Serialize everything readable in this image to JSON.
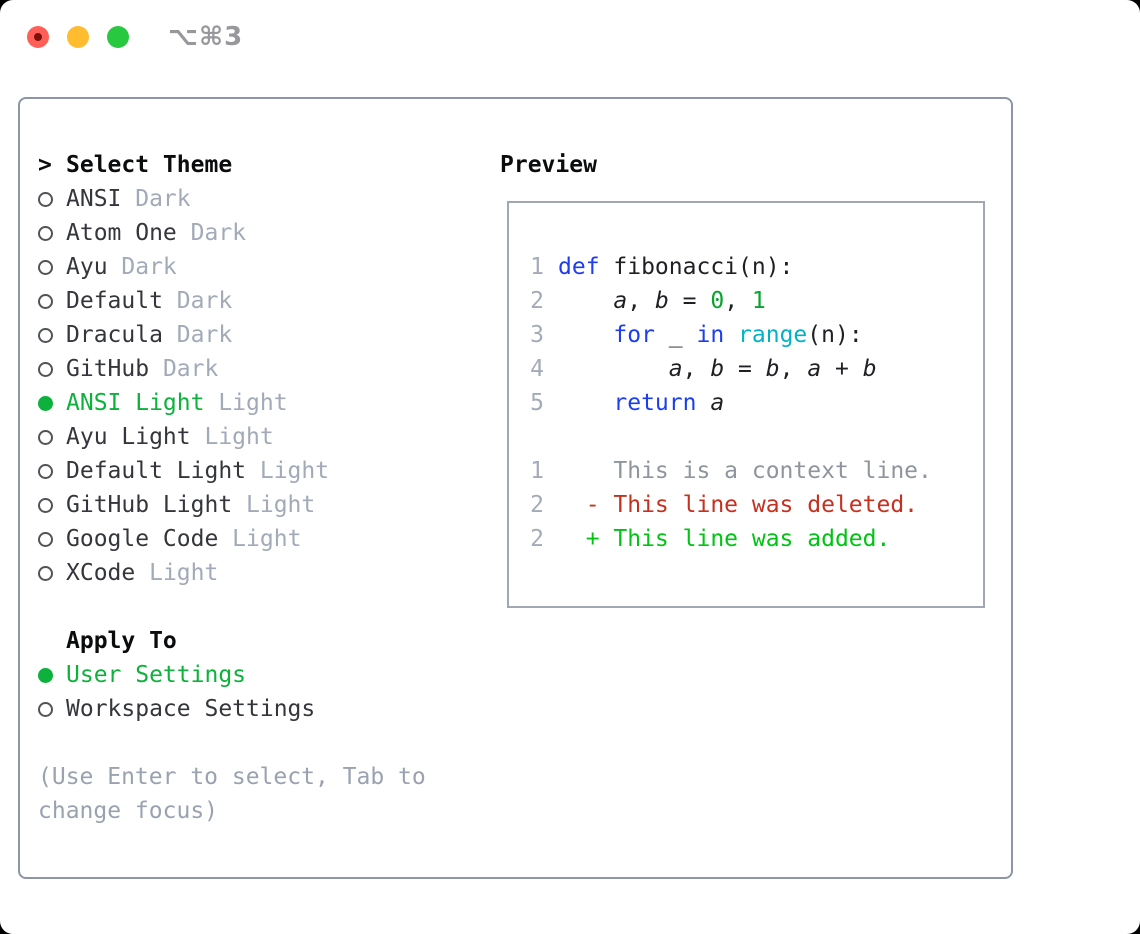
{
  "window": {
    "title": "⌥⌘3",
    "traffic_lights": [
      "close",
      "minimize",
      "zoom"
    ]
  },
  "theme_panel": {
    "header": {
      "prompt": ">",
      "label": "Select Theme"
    },
    "themes": [
      {
        "name": "ANSI",
        "tag": "Dark",
        "selected": false
      },
      {
        "name": "Atom One",
        "tag": "Dark",
        "selected": false
      },
      {
        "name": "Ayu",
        "tag": "Dark",
        "selected": false
      },
      {
        "name": "Default",
        "tag": "Dark",
        "selected": false
      },
      {
        "name": "Dracula",
        "tag": "Dark",
        "selected": false
      },
      {
        "name": "GitHub",
        "tag": "Dark",
        "selected": false
      },
      {
        "name": "ANSI Light",
        "tag": "Light",
        "selected": true
      },
      {
        "name": "Ayu Light",
        "tag": "Light",
        "selected": false
      },
      {
        "name": "Default Light",
        "tag": "Light",
        "selected": false
      },
      {
        "name": "GitHub Light",
        "tag": "Light",
        "selected": false
      },
      {
        "name": "Google Code",
        "tag": "Light",
        "selected": false
      },
      {
        "name": "XCode",
        "tag": "Light",
        "selected": false
      }
    ],
    "apply_to": {
      "label": "Apply To",
      "options": [
        {
          "name": "User Settings",
          "selected": true
        },
        {
          "name": "Workspace Settings",
          "selected": false
        }
      ]
    },
    "hint": "(Use Enter to select, Tab to change focus)"
  },
  "preview": {
    "label": "Preview",
    "code_lines": [
      {
        "num": "1",
        "tokens": [
          {
            "c": "kw",
            "t": "def"
          },
          {
            "c": "plain",
            "t": " fibonacci(n):"
          }
        ]
      },
      {
        "num": "2",
        "tokens": [
          {
            "c": "plain",
            "t": "    "
          },
          {
            "c": "var",
            "t": "a"
          },
          {
            "c": "plain",
            "t": ", "
          },
          {
            "c": "var",
            "t": "b"
          },
          {
            "c": "plain",
            "t": " = "
          },
          {
            "c": "num",
            "t": "0"
          },
          {
            "c": "plain",
            "t": ", "
          },
          {
            "c": "num",
            "t": "1"
          }
        ]
      },
      {
        "num": "3",
        "tokens": [
          {
            "c": "plain",
            "t": "    "
          },
          {
            "c": "kw",
            "t": "for"
          },
          {
            "c": "plain",
            "t": " _ "
          },
          {
            "c": "kw",
            "t": "in"
          },
          {
            "c": "plain",
            "t": " "
          },
          {
            "c": "fn",
            "t": "range"
          },
          {
            "c": "plain",
            "t": "(n):"
          }
        ]
      },
      {
        "num": "4",
        "tokens": [
          {
            "c": "plain",
            "t": "        "
          },
          {
            "c": "var",
            "t": "a"
          },
          {
            "c": "plain",
            "t": ", "
          },
          {
            "c": "var",
            "t": "b"
          },
          {
            "c": "plain",
            "t": " = "
          },
          {
            "c": "var",
            "t": "b"
          },
          {
            "c": "plain",
            "t": ", "
          },
          {
            "c": "var",
            "t": "a"
          },
          {
            "c": "plain",
            "t": " + "
          },
          {
            "c": "var",
            "t": "b"
          }
        ]
      },
      {
        "num": "5",
        "tokens": [
          {
            "c": "plain",
            "t": "    "
          },
          {
            "c": "kw",
            "t": "return"
          },
          {
            "c": "plain",
            "t": " "
          },
          {
            "c": "var",
            "t": "a"
          }
        ]
      }
    ],
    "diff_lines": [
      {
        "num": "1",
        "type": "context",
        "text": "    This is a context line."
      },
      {
        "num": "2",
        "type": "deleted",
        "text": "  - This line was deleted."
      },
      {
        "num": "2",
        "type": "added",
        "text": "  + This line was added."
      }
    ]
  },
  "colors": {
    "green_ui": "#0db13c",
    "green_num": "#0aa32f",
    "green_added": "#00c414",
    "red_deleted": "#c6301f",
    "blue_kw": "#1c3ef0",
    "cyan_fn": "#00b2c7",
    "gray_tag": "#a2aab8",
    "gray_hint": "#9aa2b0",
    "gray_lnum": "#a4abb8",
    "gray_context": "#8f959d",
    "text_main": "#27282c",
    "text_item": "#34363b",
    "text_code": "#1f2024",
    "border_outer": "#8c96a6",
    "border_preview": "#a2a8b3",
    "tl_red": "#ff5f57",
    "tl_yellow": "#febc2e",
    "tl_green": "#28c840"
  }
}
